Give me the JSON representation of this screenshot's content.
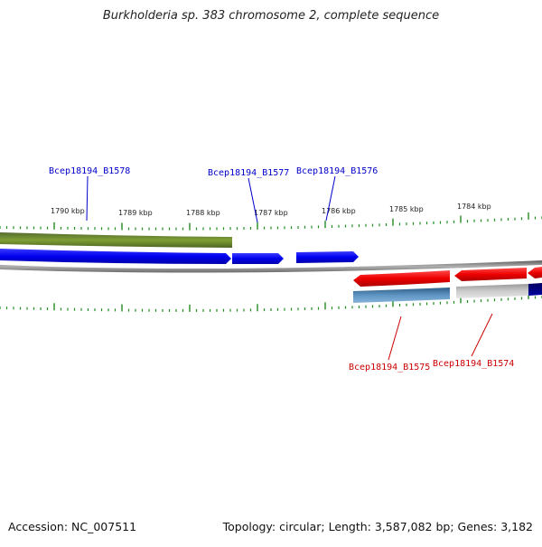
{
  "title": "Burkholderia sp. 383 chromosome 2, complete sequence",
  "footer": {
    "accession": "Accession: NC_007511",
    "summary": "Topology: circular; Length: 3,587,082 bp; Genes: 3,182"
  },
  "ruler": {
    "labels": [
      "1790 kbp",
      "1789 kbp",
      "1788 kbp",
      "1787 kbp",
      "1786 kbp",
      "1785 kbp",
      "1784 kbp"
    ]
  },
  "genes": {
    "top": [
      "Bcep18194_B1578",
      "Bcep18194_B1577",
      "Bcep18194_B1576"
    ],
    "bottom": [
      "Bcep18194_B1575",
      "Bcep18194_B1574"
    ]
  },
  "colors": {
    "forward_label": "#0000cc",
    "reverse_label": "#cc0000",
    "olive_track": "#6b8e23",
    "blue_genes": "#1a1aff",
    "red_genes": "#ff1a1a",
    "steelblue_track": "#4682b4",
    "grey_track": "#bbbbbb",
    "navy_track": "#000080",
    "backbone": "#808080",
    "tick_color": "#228b22"
  }
}
